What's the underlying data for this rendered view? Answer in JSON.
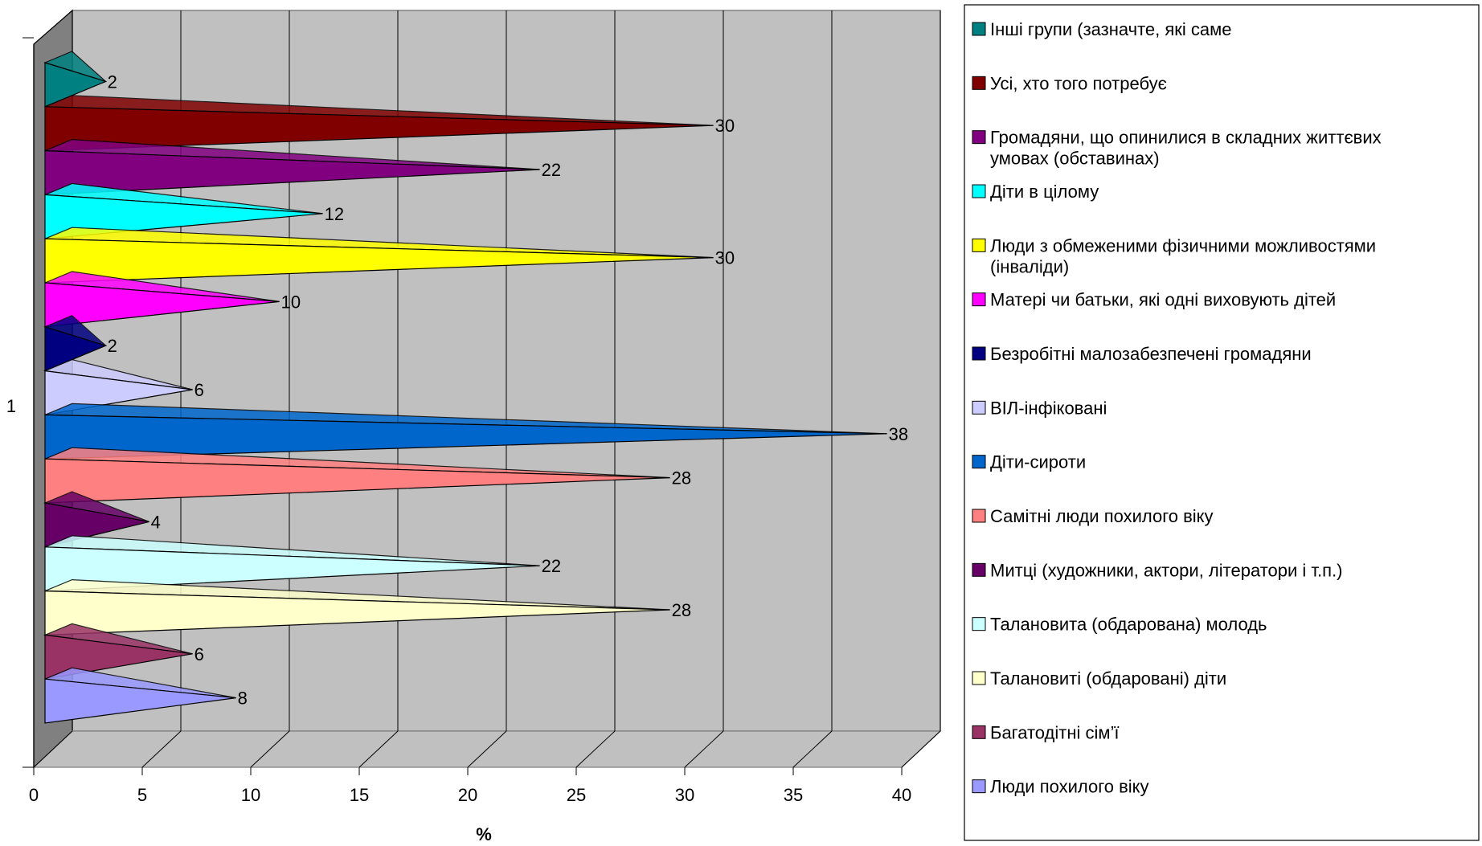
{
  "chart_data": {
    "type": "bar",
    "orientation": "horizontal",
    "style": "3d-cone",
    "categories": [
      "1"
    ],
    "xlabel": "%",
    "ylabel": "",
    "xlim": [
      0,
      40
    ],
    "xticks": [
      0,
      5,
      10,
      15,
      20,
      25,
      30,
      35,
      40
    ],
    "grid": true,
    "legend_position": "right",
    "series": [
      {
        "name": "Люди похилого віку",
        "values": [
          8
        ],
        "color": "#9999ff"
      },
      {
        "name": "Багатодітні сім’ї",
        "values": [
          6
        ],
        "color": "#993366"
      },
      {
        "name": " Талановиті (обдаровані) діти",
        "values": [
          28
        ],
        "color": "#ffffcc"
      },
      {
        "name": " Талановита (обдарована) молодь",
        "values": [
          22
        ],
        "color": "#ccffff"
      },
      {
        "name": "Митці (художники, актори, літератори і т.п.)",
        "values": [
          4
        ],
        "color": "#660066"
      },
      {
        "name": "Самітні люди похилого віку",
        "values": [
          28
        ],
        "color": "#ff8080"
      },
      {
        "name": " Діти-сироти",
        "values": [
          38
        ],
        "color": "#0066cc"
      },
      {
        "name": "ВІЛ-інфіковані",
        "values": [
          6
        ],
        "color": "#ccccff"
      },
      {
        "name": "Безробітні малозабезпечені громадяни",
        "values": [
          2
        ],
        "color": "#000080"
      },
      {
        "name": "Матері чи батьки, які одні виховують дітей",
        "values": [
          10
        ],
        "color": "#ff00ff"
      },
      {
        "name": "Люди з обмеженими фізичними можливостями (інваліди)",
        "values": [
          30
        ],
        "color": "#ffff00"
      },
      {
        "name": "Діти в цілому",
        "values": [
          12
        ],
        "color": "#00ffff"
      },
      {
        "name": "Громадяни, що опинилися в складних життєвих умовах (обставинах)",
        "values": [
          22
        ],
        "color": "#800080"
      },
      {
        "name": "Усі, хто того потребує",
        "values": [
          30
        ],
        "color": "#800000"
      },
      {
        "name": "Інші групи (зазначте, які саме",
        "values": [
          2
        ],
        "color": "#008080"
      }
    ]
  }
}
